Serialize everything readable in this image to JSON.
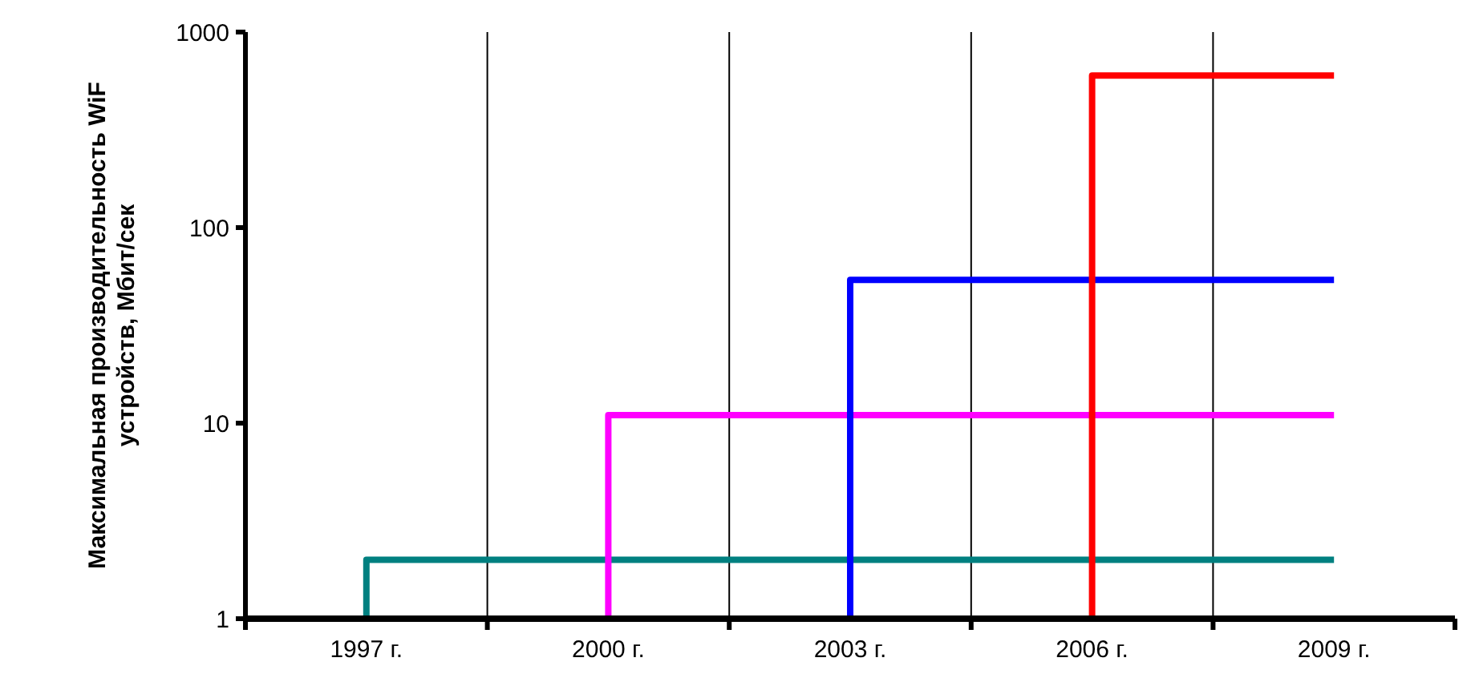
{
  "chart_data": {
    "type": "line",
    "ylabel": "Максимальная производительность WiF устройств, Мбит/сек",
    "log": true,
    "grid": "x",
    "marker": "none",
    "line_style": "solid",
    "xlim": [
      1995.5,
      2010.5
    ],
    "xticks": [
      {
        "value": 1995.5,
        "label": null
      },
      {
        "value": 1997,
        "label": "1997 г."
      },
      {
        "value": 1998.5,
        "label": null
      },
      {
        "value": 2000,
        "label": "2000 г."
      },
      {
        "value": 2001.5,
        "label": null
      },
      {
        "value": 2003,
        "label": "2003 г."
      },
      {
        "value": 2004.5,
        "label": null
      },
      {
        "value": 2006,
        "label": "2006 г."
      },
      {
        "value": 2007.5,
        "label": null
      },
      {
        "value": 2009,
        "label": "2009 г."
      },
      {
        "value": 2010.5,
        "label": null
      }
    ],
    "ylim": [
      1,
      1000
    ],
    "yticks": [
      1,
      10,
      100,
      1000
    ],
    "series": [
      {
        "color": "#008080",
        "x": [
          1997,
          1997,
          2009
        ],
        "values": [
          1,
          2,
          2
        ]
      },
      {
        "color": "#ff00ff",
        "x": [
          2000,
          2000,
          2009
        ],
        "values": [
          1,
          11,
          11
        ]
      },
      {
        "color": "#0000ff",
        "x": [
          2003,
          2003,
          2009
        ],
        "values": [
          1,
          54,
          54
        ]
      },
      {
        "color": "#ff0000",
        "x": [
          2006,
          2006,
          2009
        ],
        "values": [
          1,
          600,
          600
        ]
      }
    ]
  }
}
